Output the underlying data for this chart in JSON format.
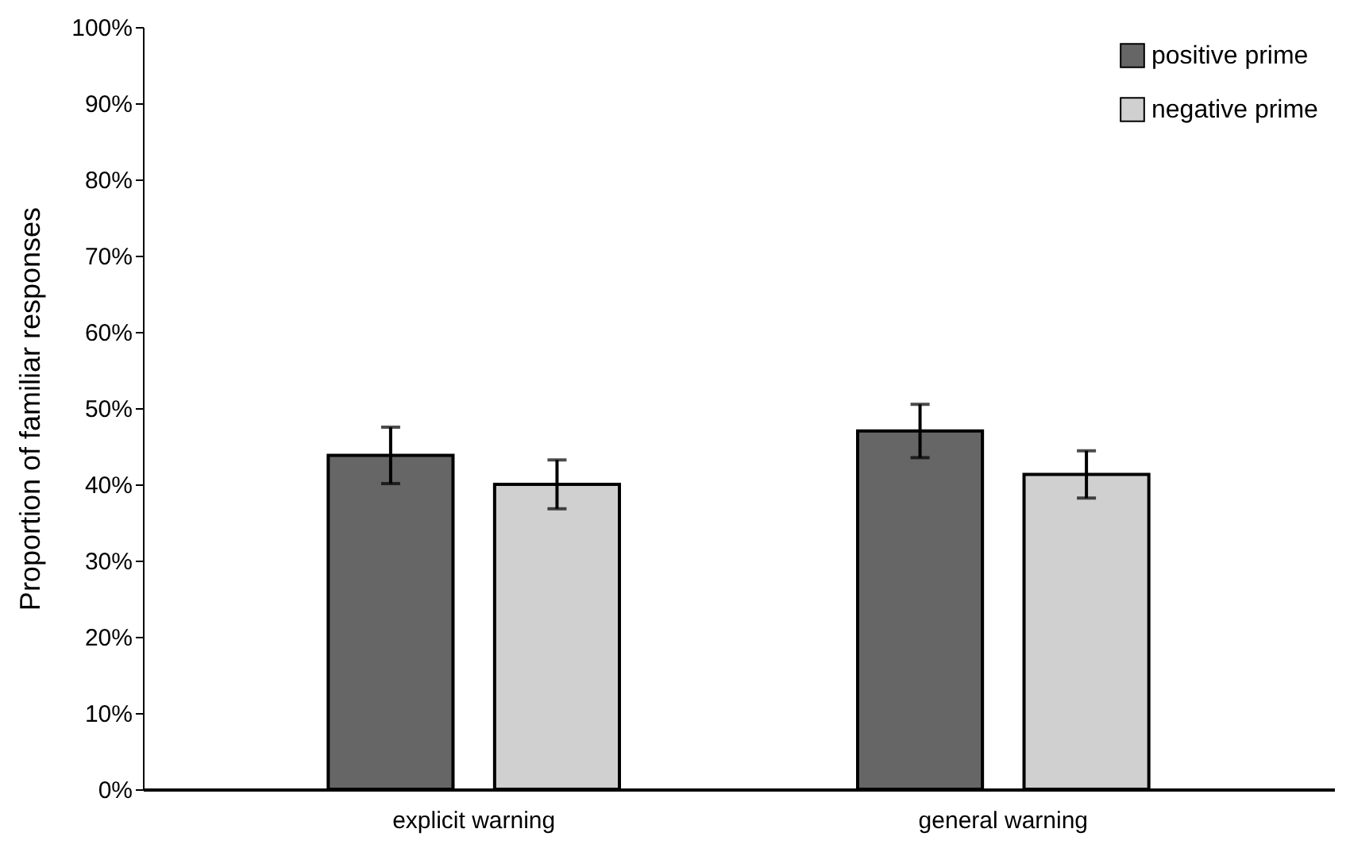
{
  "chart_data": {
    "type": "bar",
    "ylabel": "Proportion of familiar responses",
    "categories": [
      "explicit warning",
      "general warning"
    ],
    "series": [
      {
        "name": "positive prime",
        "color": "#666666",
        "values": [
          43.8,
          47.0
        ],
        "errors": [
          3.7,
          3.5
        ]
      },
      {
        "name": "negative prime",
        "color": "#d0d0d0",
        "values": [
          40.0,
          41.3
        ],
        "errors": [
          3.2,
          3.1
        ]
      }
    ],
    "ylim": [
      0,
      100
    ],
    "yticks": [
      {
        "value": 0,
        "label": "0%"
      },
      {
        "value": 10,
        "label": "10%"
      },
      {
        "value": 20,
        "label": "20%"
      },
      {
        "value": 30,
        "label": "30%"
      },
      {
        "value": 40,
        "label": "40%"
      },
      {
        "value": 50,
        "label": "50%"
      },
      {
        "value": 60,
        "label": "60%"
      },
      {
        "value": 70,
        "label": "70%"
      },
      {
        "value": 80,
        "label": "80%"
      },
      {
        "value": 90,
        "label": "90%"
      },
      {
        "value": 100,
        "label": "100%"
      }
    ],
    "grid": false,
    "legend": "top right"
  }
}
